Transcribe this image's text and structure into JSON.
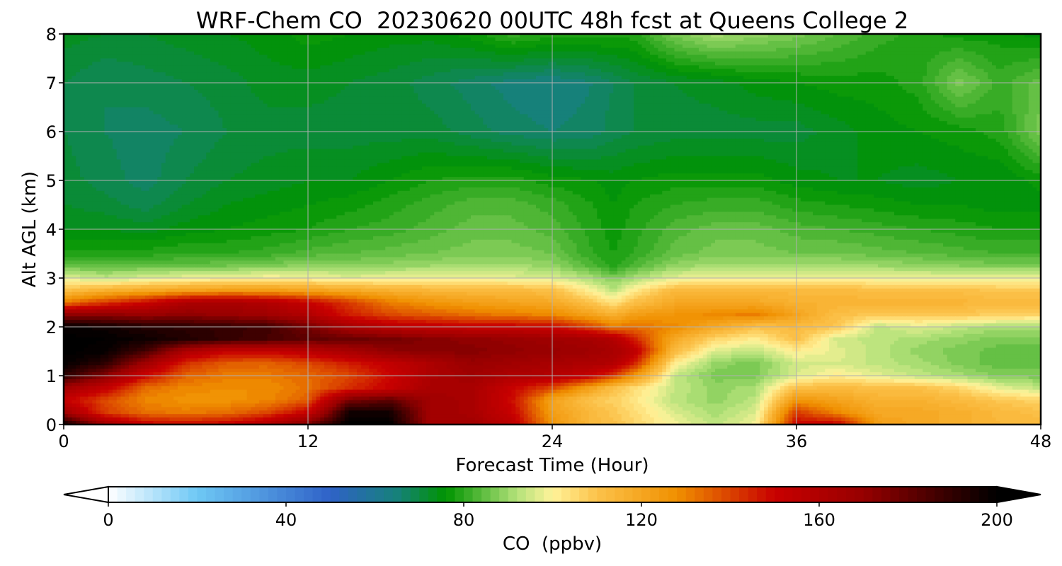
{
  "chart_data": {
    "type": "heatmap",
    "title": "WRF-Chem CO  20230620 00UTC 48h fcst at Queens College 2",
    "xlabel": "Forecast Time (Hour)",
    "ylabel": "Alt AGL (km)",
    "xlim": [
      0,
      48
    ],
    "ylim": [
      0,
      8
    ],
    "xticks": [
      "0",
      "12",
      "24",
      "36",
      "48"
    ],
    "yticks": [
      "0",
      "1",
      "2",
      "3",
      "4",
      "5",
      "6",
      "7",
      "8"
    ],
    "grid": true,
    "colorbar": {
      "label": "CO  (ppbv)",
      "range": [
        0,
        200
      ],
      "ticks": [
        "0",
        "40",
        "80",
        "120",
        "160",
        "200"
      ],
      "extend": "both",
      "orientation": "horizontal",
      "stops": [
        {
          "v": 0,
          "c": "#ffffff"
        },
        {
          "v": 20,
          "c": "#6ec8f5"
        },
        {
          "v": 50,
          "c": "#2f62c7"
        },
        {
          "v": 65,
          "c": "#16817a"
        },
        {
          "v": 76,
          "c": "#009400"
        },
        {
          "v": 92,
          "c": "#b4e27a"
        },
        {
          "v": 100,
          "c": "#fff39a"
        },
        {
          "v": 110,
          "c": "#fcc24a"
        },
        {
          "v": 128,
          "c": "#f09000"
        },
        {
          "v": 150,
          "c": "#c80000"
        },
        {
          "v": 170,
          "c": "#960000"
        },
        {
          "v": 190,
          "c": "#300000"
        },
        {
          "v": 200,
          "c": "#000000"
        }
      ]
    },
    "x": [
      0,
      2,
      4,
      6,
      8,
      10,
      12,
      14,
      16,
      18,
      20,
      22,
      24,
      26,
      27,
      28,
      30,
      32,
      34,
      36,
      38,
      40,
      42,
      44,
      46,
      48
    ],
    "y": [
      0,
      0.25,
      0.5,
      0.75,
      1.0,
      1.25,
      1.5,
      1.75,
      2.0,
      2.25,
      2.5,
      2.75,
      3.0,
      3.25,
      3.5,
      4.0,
      4.5,
      5.0,
      6.0,
      7.0,
      8.0
    ],
    "z": [
      [
        198,
        165,
        150,
        148,
        150,
        158,
        175,
        200,
        200,
        165,
        165,
        155,
        125,
        112,
        110,
        105,
        98,
        92,
        98,
        150,
        150,
        122,
        118,
        116,
        113,
        112
      ],
      [
        165,
        140,
        132,
        130,
        132,
        138,
        150,
        195,
        195,
        165,
        162,
        150,
        122,
        112,
        108,
        104,
        95,
        90,
        95,
        140,
        128,
        118,
        118,
        116,
        112,
        110
      ],
      [
        150,
        138,
        128,
        126,
        126,
        128,
        135,
        175,
        180,
        165,
        162,
        148,
        120,
        108,
        106,
        102,
        92,
        88,
        92,
        125,
        120,
        115,
        115,
        112,
        108,
        105
      ],
      [
        165,
        152,
        133,
        128,
        127,
        127,
        132,
        142,
        150,
        162,
        162,
        150,
        138,
        120,
        110,
        104,
        93,
        88,
        90,
        110,
        112,
        110,
        110,
        105,
        96,
        92
      ],
      [
        190,
        172,
        148,
        134,
        130,
        130,
        133,
        138,
        148,
        160,
        165,
        160,
        158,
        150,
        140,
        125,
        93,
        86,
        86,
        95,
        100,
        96,
        92,
        90,
        86,
        86
      ],
      [
        198,
        190,
        165,
        142,
        135,
        134,
        138,
        145,
        152,
        160,
        168,
        165,
        162,
        160,
        158,
        145,
        100,
        88,
        86,
        94,
        95,
        92,
        90,
        86,
        84,
        84
      ],
      [
        200,
        198,
        185,
        160,
        150,
        150,
        155,
        162,
        170,
        172,
        172,
        170,
        168,
        165,
        162,
        155,
        112,
        95,
        92,
        100,
        96,
        92,
        88,
        86,
        84,
        84
      ],
      [
        200,
        199,
        196,
        192,
        188,
        185,
        180,
        178,
        176,
        172,
        170,
        168,
        165,
        162,
        158,
        145,
        118,
        105,
        100,
        110,
        94,
        92,
        90,
        88,
        86,
        86
      ],
      [
        198,
        196,
        192,
        190,
        188,
        186,
        176,
        162,
        155,
        152,
        150,
        150,
        148,
        138,
        130,
        132,
        128,
        118,
        110,
        112,
        108,
        92,
        96,
        92,
        90,
        90
      ],
      [
        170,
        170,
        168,
        170,
        168,
        165,
        158,
        145,
        138,
        135,
        132,
        130,
        128,
        120,
        115,
        122,
        125,
        128,
        130,
        120,
        110,
        108,
        108,
        108,
        106,
        105
      ],
      [
        130,
        140,
        148,
        160,
        162,
        158,
        150,
        140,
        130,
        125,
        122,
        120,
        118,
        108,
        102,
        110,
        118,
        118,
        118,
        115,
        115,
        114,
        114,
        114,
        112,
        112
      ],
      [
        110,
        115,
        118,
        120,
        122,
        122,
        120,
        118,
        115,
        113,
        112,
        112,
        110,
        98,
        92,
        100,
        112,
        112,
        112,
        112,
        112,
        110,
        110,
        110,
        108,
        108
      ],
      [
        96,
        92,
        95,
        97,
        98,
        99,
        98,
        96,
        97,
        98,
        98,
        96,
        95,
        90,
        86,
        90,
        96,
        98,
        98,
        98,
        98,
        97,
        97,
        97,
        97,
        97
      ],
      [
        84,
        84,
        84,
        84,
        85,
        86,
        88,
        87,
        88,
        89,
        90,
        90,
        88,
        82,
        78,
        82,
        88,
        90,
        90,
        90,
        90,
        89,
        88,
        87,
        86,
        86
      ],
      [
        78,
        78,
        78,
        79,
        79,
        80,
        82,
        83,
        84,
        85,
        86,
        86,
        85,
        79,
        77,
        79,
        84,
        86,
        86,
        85,
        85,
        84,
        83,
        82,
        81,
        81
      ],
      [
        73,
        73,
        72,
        74,
        75,
        76,
        77,
        79,
        80,
        82,
        84,
        84,
        82,
        78,
        76,
        78,
        82,
        84,
        84,
        82,
        81,
        80,
        79,
        78,
        77,
        77
      ],
      [
        71,
        70,
        68,
        71,
        73,
        74,
        75,
        76,
        78,
        80,
        82,
        82,
        80,
        77,
        75,
        77,
        79,
        80,
        80,
        78,
        77,
        76,
        75,
        75,
        74,
        74
      ],
      [
        70,
        68,
        66,
        69,
        71,
        72,
        73,
        73,
        75,
        77,
        78,
        78,
        76,
        75,
        74,
        75,
        76,
        76,
        76,
        74,
        73,
        73,
        72,
        73,
        73,
        76
      ],
      [
        69,
        67,
        66,
        67,
        69,
        70,
        70,
        70,
        70,
        70,
        68,
        66,
        65,
        66,
        68,
        69,
        70,
        70,
        70,
        70,
        72,
        74,
        75,
        76,
        78,
        86
      ],
      [
        69,
        67,
        68,
        69,
        70,
        72,
        72,
        71,
        70,
        68,
        66,
        64,
        63,
        65,
        67,
        69,
        71,
        72,
        74,
        75,
        76,
        76,
        78,
        86,
        80,
        84
      ],
      [
        72,
        71,
        71,
        72,
        73,
        74,
        76,
        75,
        74,
        74,
        76,
        80,
        78,
        78,
        78,
        78,
        86,
        90,
        88,
        86,
        83,
        80,
        78,
        76,
        76,
        74
      ]
    ]
  }
}
